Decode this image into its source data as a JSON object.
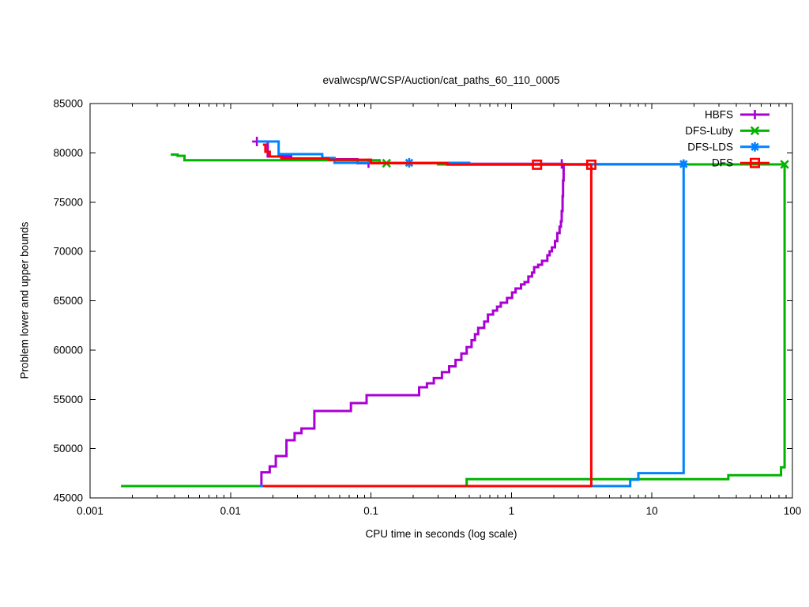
{
  "title": "evalwcsp/WCSP/Auction/cat_paths_60_110_0005",
  "xlabel": "CPU time in seconds (log scale)",
  "ylabel": "Problem lower and upper bounds",
  "chart_data": {
    "type": "line",
    "x_scale": "log",
    "xlim": [
      0.001,
      100
    ],
    "ylim": [
      45000,
      85000
    ],
    "grid": false,
    "legend_position": "top-right-inside",
    "x_ticks": [
      {
        "v": 0.001,
        "label": "0.001"
      },
      {
        "v": 0.01,
        "label": "0.01"
      },
      {
        "v": 0.1,
        "label": "0.1"
      },
      {
        "v": 1,
        "label": "1"
      },
      {
        "v": 10,
        "label": "10"
      },
      {
        "v": 100,
        "label": "100"
      }
    ],
    "y_ticks": [
      {
        "v": 45000,
        "label": "45000"
      },
      {
        "v": 50000,
        "label": "50000"
      },
      {
        "v": 55000,
        "label": "55000"
      },
      {
        "v": 60000,
        "label": "60000"
      },
      {
        "v": 65000,
        "label": "65000"
      },
      {
        "v": 70000,
        "label": "70000"
      },
      {
        "v": 75000,
        "label": "75000"
      },
      {
        "v": 80000,
        "label": "80000"
      },
      {
        "v": 85000,
        "label": "85000"
      }
    ],
    "series": [
      {
        "name": "HBFS",
        "color": "#AA00D4",
        "marker": "plus",
        "style": "steps",
        "segments": [
          [
            [
              0.013,
              46200
            ],
            [
              0.0166,
              47600
            ],
            [
              0.019,
              48200
            ],
            [
              0.021,
              49250
            ],
            [
              0.025,
              50850
            ],
            [
              0.0286,
              51575
            ],
            [
              0.032,
              52050
            ],
            [
              0.0395,
              53820
            ],
            [
              0.072,
              54620
            ],
            [
              0.093,
              55420
            ],
            [
              0.22,
              56220
            ],
            [
              0.25,
              56620
            ],
            [
              0.28,
              57150
            ],
            [
              0.32,
              57750
            ],
            [
              0.36,
              58350
            ],
            [
              0.4,
              59000
            ],
            [
              0.44,
              59650
            ],
            [
              0.48,
              60300
            ],
            [
              0.52,
              61000
            ],
            [
              0.55,
              61600
            ],
            [
              0.58,
              62240
            ],
            [
              0.64,
              62880
            ],
            [
              0.68,
              63600
            ],
            [
              0.74,
              64000
            ],
            [
              0.79,
              64400
            ],
            [
              0.84,
              64800
            ],
            [
              0.93,
              65280
            ],
            [
              1.01,
              65840
            ],
            [
              1.07,
              66240
            ],
            [
              1.17,
              66650
            ],
            [
              1.24,
              66890
            ],
            [
              1.32,
              67450
            ],
            [
              1.4,
              67850
            ],
            [
              1.45,
              68410
            ],
            [
              1.55,
              68650
            ],
            [
              1.65,
              69050
            ],
            [
              1.8,
              69610
            ],
            [
              1.87,
              70010
            ],
            [
              1.94,
              70410
            ],
            [
              2.04,
              71050
            ],
            [
              2.12,
              71860
            ],
            [
              2.2,
              72500
            ],
            [
              2.25,
              73060
            ],
            [
              2.28,
              74100
            ],
            [
              2.31,
              75600
            ],
            [
              2.33,
              77200
            ],
            [
              2.35,
              78880
            ]
          ],
          [
            [
              0.0154,
              81150
            ],
            [
              0.0184,
              79630
            ],
            [
              0.027,
              79350
            ],
            [
              0.08,
              78950
            ],
            [
              0.3,
              78880
            ],
            [
              2.35,
              78880
            ]
          ]
        ],
        "markers": [
          [
            0.0154,
            81150
          ],
          [
            0.096,
            78950
          ],
          [
            2.28,
            78880
          ]
        ]
      },
      {
        "name": "DFS-Luby",
        "color": "#00B400",
        "marker": "cross",
        "style": "steps",
        "segments": [
          [
            [
              0.00166,
              46200
            ],
            [
              0.48,
              46900
            ],
            [
              35,
              47300
            ],
            [
              83,
              48100
            ],
            [
              88,
              78830
            ]
          ],
          [
            [
              0.00375,
              79820
            ],
            [
              0.0042,
              79700
            ],
            [
              0.0047,
              79250
            ],
            [
              0.115,
              78950
            ],
            [
              0.3,
              78830
            ],
            [
              88,
              78830
            ]
          ]
        ],
        "markers": [
          [
            0.129,
            78950
          ],
          [
            88,
            78830
          ]
        ]
      },
      {
        "name": "DFS-LDS",
        "color": "#0082FF",
        "marker": "star",
        "style": "steps",
        "segments": [
          [
            [
              0.016,
              46200
            ],
            [
              7,
              46840
            ],
            [
              8,
              47520
            ],
            [
              16.8,
              78860
            ]
          ],
          [
            [
              0.0155,
              81150
            ],
            [
              0.022,
              79870
            ],
            [
              0.045,
              79480
            ],
            [
              0.055,
              78990
            ],
            [
              0.5,
              78860
            ],
            [
              16.8,
              78860
            ]
          ]
        ],
        "markers": [
          [
            0.187,
            78990
          ],
          [
            16.8,
            78860
          ]
        ]
      },
      {
        "name": "DFS",
        "color": "#FF0000",
        "marker": "square",
        "style": "steps",
        "segments": [
          [
            [
              0.017,
              46200
            ],
            [
              3.7,
              78800
            ]
          ],
          [
            [
              0.017,
              80830
            ],
            [
              0.0177,
              80110
            ],
            [
              0.019,
              79630
            ],
            [
              0.023,
              79430
            ],
            [
              0.05,
              79300
            ],
            [
              0.1,
              78950
            ],
            [
              0.35,
              78800
            ],
            [
              3.7,
              78800
            ]
          ]
        ],
        "markers": [
          [
            1.52,
            78800
          ],
          [
            3.7,
            78800
          ]
        ]
      }
    ]
  }
}
